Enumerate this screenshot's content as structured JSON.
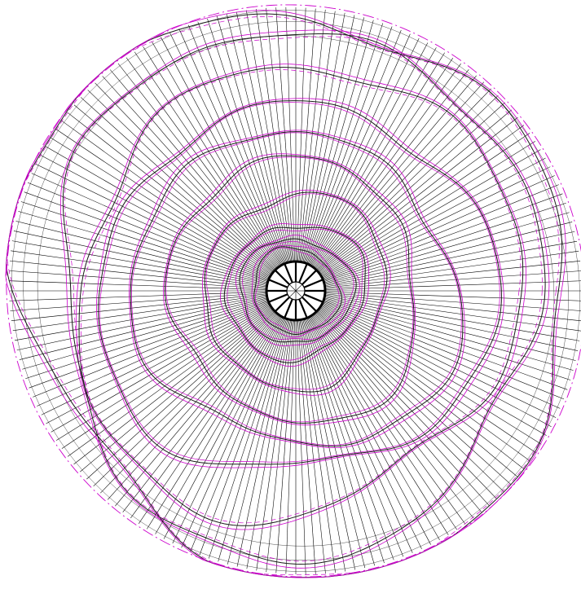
{
  "diagram": {
    "kind": "radial-mesh-contours",
    "colors": {
      "background": "#ffffff",
      "spoke": "#000000",
      "faint_spoke": "#c8c8c8",
      "contour_black": "#1a1a1a",
      "contour_magenta": "#cc00cc",
      "hub_fill": "#ffffff",
      "hub_stroke": "#000000"
    },
    "spoke_count": 180,
    "hub_spoke_count": 16,
    "ring_count": 10,
    "labels": []
  }
}
